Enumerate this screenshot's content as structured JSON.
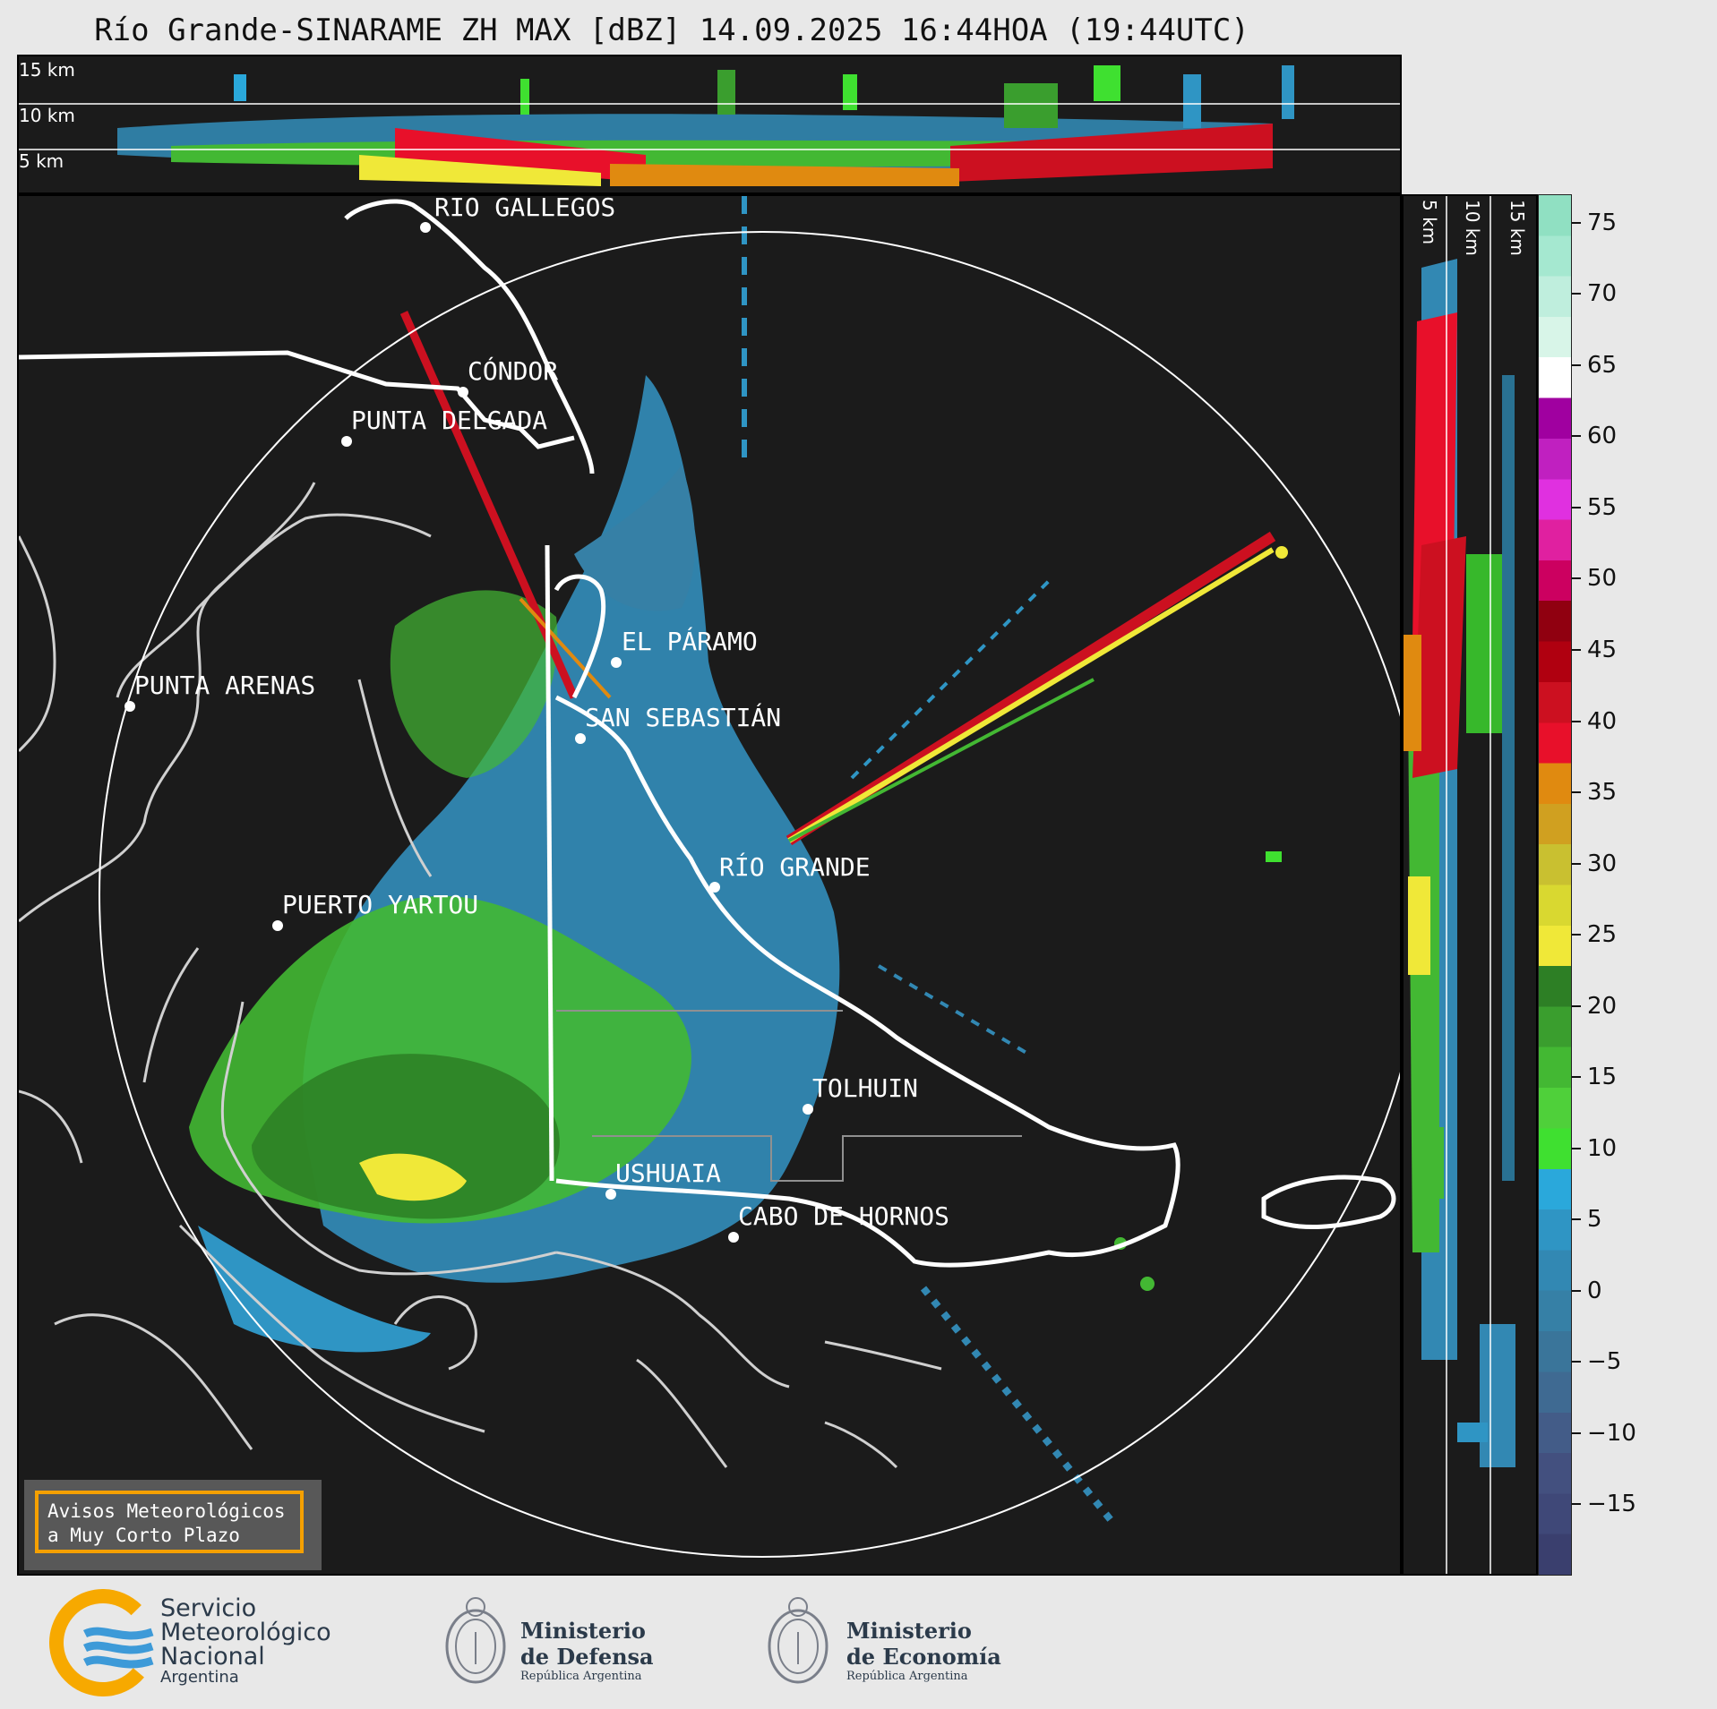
{
  "title": "Río Grande-SINARAME ZH MAX [dBZ] 14.09.2025 16:44HOA (19:44UTC)",
  "top_panel": {
    "altitudes": [
      "15 km",
      "10 km",
      "5 km"
    ]
  },
  "side_panel": {
    "altitudes": [
      "5 km",
      "10 km",
      "15 km"
    ]
  },
  "cities": [
    {
      "name": "RÍO GALLEGOS"
    },
    {
      "name": "CÓNDOR"
    },
    {
      "name": "PUNTA DELGADA"
    },
    {
      "name": "EL PÁRAMO"
    },
    {
      "name": "PUNTA ARENAS"
    },
    {
      "name": "SAN SEBASTIÁN"
    },
    {
      "name": "RÍO GRANDE"
    },
    {
      "name": "PUERTO YARTOU"
    },
    {
      "name": "TOLHUIN"
    },
    {
      "name": "USHUAIA"
    },
    {
      "name": "CABO DE HORNOS"
    }
  ],
  "colorbar": {
    "unit": "dBZ",
    "ticks": [
      "75",
      "70",
      "65",
      "60",
      "55",
      "50",
      "45",
      "40",
      "35",
      "30",
      "25",
      "20",
      "15",
      "10",
      "5",
      "0",
      "−5",
      "−10",
      "−15"
    ],
    "range": [
      -20,
      77
    ],
    "colors": [
      "#3a3f6e",
      "#3f4878",
      "#43507f",
      "#435c88",
      "#3f6a92",
      "#3a759a",
      "#3680a6",
      "#3288b3",
      "#2f95c4",
      "#2aa8db",
      "#3fe030",
      "#4fd03a",
      "#43b833",
      "#3a9e2e",
      "#2d7f25",
      "#f0e838",
      "#d9d830",
      "#c9c030",
      "#d0a020",
      "#e08a10",
      "#e8102a",
      "#cc1020",
      "#b00010",
      "#900010",
      "#cc0060",
      "#e020a0",
      "#e030e0",
      "#c020c0",
      "#a000a0",
      "#ffffff",
      "#d8f5e8",
      "#bfeedd",
      "#a5e8d0",
      "#90e0c2"
    ]
  },
  "notice": {
    "line1": "Avisos Meteorológicos",
    "line2": "a Muy Corto Plazo"
  },
  "logos": {
    "smn": {
      "line1": "Servicio",
      "line2": "Meteorológico",
      "line3": "Nacional",
      "line4": "Argentina"
    },
    "defensa": {
      "line1": "Ministerio",
      "line2": "de Defensa",
      "line3": "República Argentina"
    },
    "economia": {
      "line1": "Ministerio",
      "line2": "de Economía",
      "line3": "República Argentina"
    }
  },
  "colors": {
    "background": "#1b1b1b",
    "range_ring": "#ffffff",
    "coast": "#d0d0d0",
    "border": "#ffffff",
    "notice_border": "#f5a000"
  }
}
